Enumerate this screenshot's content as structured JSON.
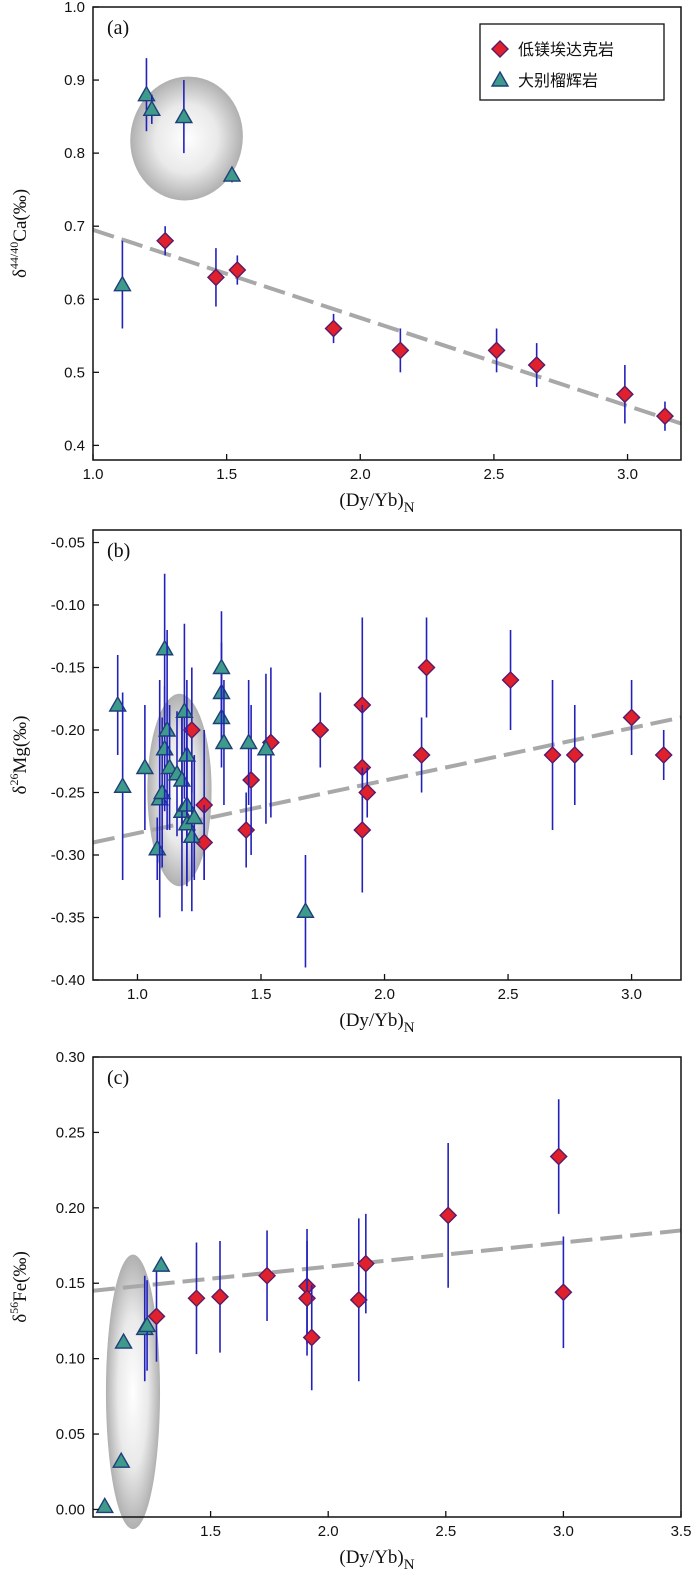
{
  "colors": {
    "diamond_fill": "#e0202a",
    "diamond_edge": "#5a1a6a",
    "triangle_fill": "#3e9a8a",
    "triangle_edge": "#1e3f7a",
    "error_bar": "#2222bb",
    "trend": "#a8a8a8"
  },
  "legend": {
    "diamond_label": "低镁埃达克岩",
    "triangle_label": "大别榴辉岩"
  },
  "chart_data": [
    {
      "type": "scatter",
      "panel_label": "(a)",
      "xlabel": "(Dy/Yb)",
      "xlabel_sub": "N",
      "ylabel_delta": "δ",
      "ylabel_sup": "44/40",
      "ylabel_main": "Ca(‰)",
      "xlim": [
        1.0,
        3.2
      ],
      "ylim": [
        0.38,
        1.0
      ],
      "xticks": [
        "1.0",
        "1.5",
        "2.0",
        "2.5",
        "3.0"
      ],
      "yticks": [
        "0.4",
        "0.5",
        "0.6",
        "0.7",
        "0.8",
        "0.9",
        "1.0"
      ],
      "series": [
        {
          "name": "低镁埃达克岩",
          "marker": "diamond",
          "x": [
            1.27,
            1.46,
            1.54,
            1.9,
            2.15,
            2.51,
            2.66,
            2.99,
            3.14
          ],
          "y": [
            0.68,
            0.63,
            0.64,
            0.56,
            0.53,
            0.53,
            0.51,
            0.47,
            0.44
          ],
          "err": [
            0.02,
            0.04,
            0.02,
            0.02,
            0.03,
            0.03,
            0.03,
            0.04,
            0.02
          ]
        },
        {
          "name": "大别榴辉岩",
          "marker": "triangle",
          "x": [
            1.11,
            1.2,
            1.22,
            1.34,
            1.52
          ],
          "y": [
            0.62,
            0.88,
            0.86,
            0.85,
            0.77
          ],
          "err": [
            0.06,
            0.05,
            0.02,
            0.05,
            0.01
          ]
        }
      ],
      "trend": {
        "x": [
          1.0,
          3.2
        ],
        "y": [
          0.695,
          0.43
        ]
      },
      "ellipse": {
        "cx": 1.35,
        "cy": 0.82,
        "rx": 0.21,
        "ry": 0.085,
        "tilt": 10
      }
    },
    {
      "type": "scatter",
      "panel_label": "(b)",
      "xlabel": "(Dy/Yb)",
      "xlabel_sub": "N",
      "ylabel_delta": "δ",
      "ylabel_sup": "26",
      "ylabel_main": "Mg(‰)",
      "xlim": [
        0.82,
        3.2
      ],
      "ylim": [
        -0.4,
        -0.04
      ],
      "xticks": [
        "1.0",
        "1.5",
        "2.0",
        "2.5",
        "3.0"
      ],
      "yticks": [
        "-0.05",
        "-0.10",
        "-0.15",
        "-0.20",
        "-0.25",
        "-0.30",
        "-0.35",
        "-0.40"
      ],
      "series": [
        {
          "name": "低镁埃达克岩",
          "marker": "diamond",
          "x": [
            1.22,
            1.27,
            1.27,
            1.44,
            1.46,
            1.54,
            1.74,
            1.91,
            1.91,
            1.91,
            1.93,
            2.15,
            2.17,
            2.51,
            2.68,
            2.77,
            3.0,
            3.13
          ],
          "y": [
            -0.2,
            -0.26,
            -0.29,
            -0.28,
            -0.24,
            -0.21,
            -0.2,
            -0.18,
            -0.23,
            -0.28,
            -0.25,
            -0.22,
            -0.15,
            -0.16,
            -0.22,
            -0.22,
            -0.19,
            -0.22
          ],
          "err": [
            0.05,
            0.06,
            0.03,
            0.03,
            0.06,
            0.06,
            0.03,
            0.07,
            0.05,
            0.05,
            0.02,
            0.03,
            0.04,
            0.04,
            0.06,
            0.04,
            0.03,
            0.02
          ]
        },
        {
          "name": "大别榴辉岩",
          "marker": "triangle",
          "x": [
            0.92,
            0.94,
            1.03,
            1.08,
            1.09,
            1.1,
            1.11,
            1.11,
            1.12,
            1.13,
            1.16,
            1.18,
            1.18,
            1.19,
            1.2,
            1.2,
            1.2,
            1.22,
            1.23,
            1.34,
            1.34,
            1.34,
            1.35,
            1.45,
            1.52,
            1.68
          ],
          "y": [
            -0.18,
            -0.245,
            -0.23,
            -0.295,
            -0.255,
            -0.25,
            -0.215,
            -0.135,
            -0.2,
            -0.23,
            -0.235,
            -0.265,
            -0.24,
            -0.185,
            -0.22,
            -0.26,
            -0.275,
            -0.285,
            -0.27,
            -0.17,
            -0.19,
            -0.15,
            -0.21,
            -0.21,
            -0.215,
            -0.345
          ],
          "err": [
            0.04,
            0.075,
            0.05,
            0.025,
            0.095,
            0.06,
            0.05,
            0.06,
            0.08,
            0.05,
            0.05,
            0.08,
            0.05,
            0.07,
            0.06,
            0.06,
            0.05,
            0.06,
            0.05,
            0.04,
            0.04,
            0.045,
            0.05,
            0.05,
            0.06,
            0.045
          ]
        }
      ],
      "trend": {
        "x": [
          0.82,
          3.2
        ],
        "y": [
          -0.29,
          -0.19
        ]
      },
      "ellipse": {
        "cx": 1.17,
        "cy": -0.248,
        "rx": 0.13,
        "ry": 0.077,
        "tilt": 0
      }
    },
    {
      "type": "scatter",
      "panel_label": "(c)",
      "xlabel": "(Dy/Yb)",
      "xlabel_sub": "N",
      "ylabel_delta": "δ",
      "ylabel_sup": "56",
      "ylabel_main": "Fe(‰)",
      "xlim": [
        1.0,
        3.5
      ],
      "ylim": [
        -0.005,
        0.3
      ],
      "xticks": [
        "1.5",
        "2.0",
        "2.5",
        "3.0",
        "3.5"
      ],
      "yticks": [
        "0.00",
        "0.05",
        "0.10",
        "0.15",
        "0.20",
        "0.25",
        "0.30"
      ],
      "series": [
        {
          "name": "低镁埃达克岩",
          "marker": "diamond",
          "x": [
            1.27,
            1.44,
            1.54,
            1.74,
            1.91,
            1.91,
            1.93,
            2.13,
            2.16,
            2.51,
            2.98,
            3.0
          ],
          "y": [
            0.128,
            0.14,
            0.141,
            0.155,
            0.148,
            0.14,
            0.114,
            0.139,
            0.163,
            0.195,
            0.234,
            0.144
          ],
          "err": [
            0.03,
            0.037,
            0.037,
            0.03,
            0.038,
            0.038,
            0.035,
            0.054,
            0.033,
            0.048,
            0.038,
            0.037
          ]
        },
        {
          "name": "大别榴辉岩",
          "marker": "triangle",
          "x": [
            1.05,
            1.12,
            1.13,
            1.22,
            1.23,
            1.29
          ],
          "y": [
            0.002,
            0.032,
            0.111,
            0.12,
            0.122,
            0.162
          ],
          "err": [
            0,
            0,
            0,
            0.035,
            0.03,
            0.0
          ]
        }
      ],
      "trend": {
        "x": [
          1.0,
          3.5
        ],
        "y": [
          0.145,
          0.185
        ]
      },
      "ellipse": {
        "cx": 1.17,
        "cy": 0.078,
        "rx": 0.115,
        "ry": 0.091,
        "tilt": 0
      }
    }
  ]
}
